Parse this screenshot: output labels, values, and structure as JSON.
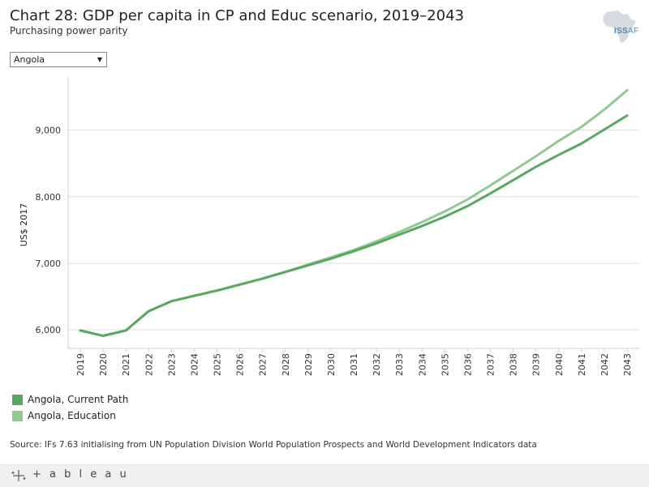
{
  "header": {
    "title": "Chart 28: GDP per capita in CP and Educ scenario, 2019–2043",
    "subtitle": "Purchasing power parity",
    "logo_text": "ISS",
    "logo_suffix": "AF"
  },
  "filter": {
    "selected": "Angola"
  },
  "chart_data": {
    "type": "line",
    "title": "Chart 28: GDP per capita in CP and Educ scenario, 2019–2043",
    "subtitle": "Purchasing power parity",
    "xlabel": "",
    "ylabel": "US$ 2017",
    "ylim": [
      5720,
      9800
    ],
    "yticks": [
      6000,
      7000,
      8000,
      9000
    ],
    "ytick_labels": [
      "6,000",
      "7,000",
      "8,000",
      "9,000"
    ],
    "grid": true,
    "legend_position": "bottom-left",
    "x": [
      "2019",
      "2020",
      "2021",
      "2022",
      "2023",
      "2024",
      "2025",
      "2026",
      "2027",
      "2028",
      "2029",
      "2030",
      "2031",
      "2032",
      "2033",
      "2034",
      "2035",
      "2036",
      "2037",
      "2038",
      "2039",
      "2040",
      "2041",
      "2042",
      "2043"
    ],
    "series": [
      {
        "name": "Angola, Current Path",
        "color": "#59a85f",
        "values": [
          5990,
          5910,
          5990,
          6280,
          6430,
          6510,
          6590,
          6680,
          6770,
          6870,
          6970,
          7070,
          7180,
          7300,
          7430,
          7560,
          7700,
          7860,
          8050,
          8250,
          8450,
          8630,
          8800,
          9010,
          9220
        ]
      },
      {
        "name": "Angola, Education",
        "color": "#8fca92",
        "values": [
          5990,
          5910,
          5990,
          6280,
          6430,
          6510,
          6590,
          6680,
          6770,
          6870,
          6980,
          7090,
          7200,
          7330,
          7470,
          7620,
          7780,
          7960,
          8170,
          8390,
          8610,
          8840,
          9050,
          9310,
          9600
        ]
      }
    ]
  },
  "source": "Source: IFs 7.63 initialising from UN Population Division World Population Prospects and World Development Indicators data",
  "footer": {
    "brand": "+ a b l e a u"
  }
}
